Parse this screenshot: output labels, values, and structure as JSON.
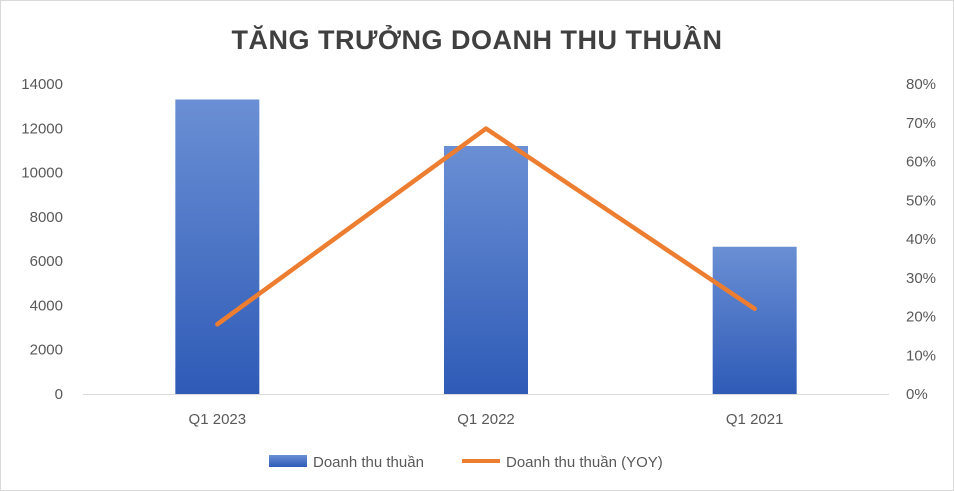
{
  "chart_data": {
    "type": "bar",
    "title": "TĂNG TRƯỞNG DOANH THU THUẦN",
    "categories": [
      "Q1 2023",
      "Q1 2022",
      "Q1 2021"
    ],
    "series": [
      {
        "name": "Doanh thu thuần",
        "type": "bar",
        "axis": "left",
        "values": [
          13300,
          11200,
          6650
        ],
        "color": "#4472C4"
      },
      {
        "name": "Doanh thu thuần (YOY)",
        "type": "line",
        "axis": "right",
        "values": [
          0.18,
          0.685,
          0.22
        ],
        "color": "#ED7D31"
      }
    ],
    "y_left": {
      "range": [
        0,
        14000
      ],
      "ticks": [
        "0",
        "2000",
        "4000",
        "6000",
        "8000",
        "10000",
        "12000",
        "14000"
      ]
    },
    "y_right": {
      "range": [
        0,
        0.8
      ],
      "ticks": [
        "0%",
        "10%",
        "20%",
        "30%",
        "40%",
        "50%",
        "60%",
        "70%",
        "80%"
      ]
    },
    "grid": false,
    "legend": "bottom-center"
  },
  "colors": {
    "bar_top": "#6A8FD4",
    "bar_bottom": "#2F5BB7",
    "line": "#ED7D31",
    "axis": "#d9d9d9",
    "text": "#595959",
    "title": "#404040"
  }
}
